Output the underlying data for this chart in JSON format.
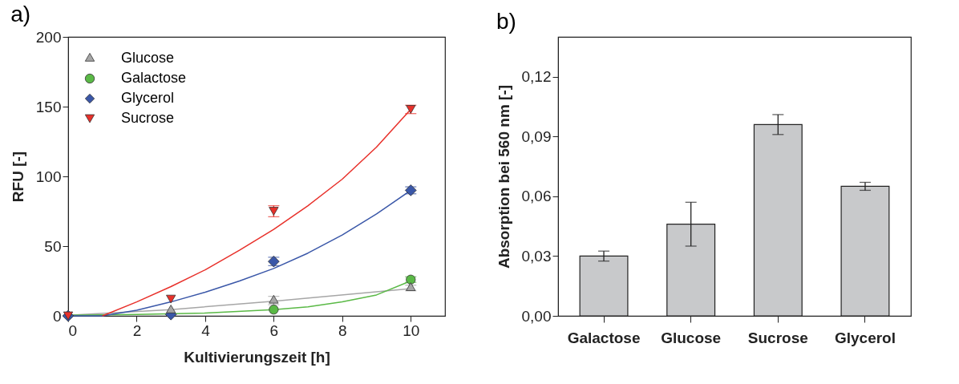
{
  "chart_data": [
    {
      "type": "scatter",
      "title": "a)",
      "xlabel": "Kultivierungszeit [h]",
      "ylabel": "RFU [-]",
      "x": [
        0,
        3,
        6,
        10
      ],
      "xlim": [
        0,
        11
      ],
      "xticks": [
        0,
        2,
        4,
        6,
        8,
        10
      ],
      "ylim": [
        0,
        200
      ],
      "yticks": [
        0,
        50,
        100,
        150,
        200
      ],
      "legend": "top left",
      "series": [
        {
          "name": "Glucose",
          "color": "#a6a6a6",
          "marker": "triangle",
          "values": [
            null,
            4,
            11,
            20
          ],
          "errors": [
            null,
            null,
            3,
            2
          ]
        },
        {
          "name": "Galactose",
          "color": "#5ab946",
          "marker": "circle",
          "values": [
            null,
            null,
            4.5,
            26
          ],
          "errors": [
            null,
            null,
            null,
            2
          ]
        },
        {
          "name": "Glycerol",
          "color": "#3a57a8",
          "marker": "diamond",
          "values": [
            0,
            1,
            39,
            90
          ],
          "errors": [
            null,
            null,
            3,
            2.5
          ]
        },
        {
          "name": "Sucrose",
          "color": "#e8302a",
          "marker": "triangle-down",
          "values": [
            0,
            12,
            75,
            148
          ],
          "errors": [
            null,
            null,
            4,
            3
          ]
        },
        {
          "type": "line",
          "color": "#a6a6a6",
          "x": [
            0,
            3,
            6,
            10
          ],
          "values": [
            0.5,
            4.5,
            10.5,
            19.5
          ]
        },
        {
          "type": "line",
          "color": "#5ab946",
          "x": [
            0,
            2,
            4,
            6,
            7,
            8,
            9,
            10
          ],
          "values": [
            0.5,
            1,
            2,
            4.5,
            6.5,
            10,
            15,
            25
          ]
        },
        {
          "type": "line",
          "color": "#3a57a8",
          "x": [
            0,
            1,
            2,
            3,
            4,
            5,
            6,
            7,
            8,
            9,
            10
          ],
          "values": [
            0,
            0,
            4,
            10,
            17,
            25,
            34,
            45,
            58,
            73,
            90
          ]
        },
        {
          "type": "line",
          "color": "#e8302a",
          "x": [
            1,
            2,
            3,
            4,
            5,
            6,
            7,
            8,
            9,
            10
          ],
          "values": [
            0,
            10,
            21,
            33,
            47,
            62,
            79,
            98,
            121,
            148
          ]
        }
      ]
    },
    {
      "type": "bar",
      "title": "b)",
      "ylabel": "Absorption bei 560 nm [-]",
      "categories": [
        "Galactose",
        "Glucose",
        "Sucrose",
        "Glycerol"
      ],
      "color": "#c8c9cb",
      "values": [
        0.03,
        0.046,
        0.096,
        0.065
      ],
      "errors": [
        0.0025,
        0.011,
        0.005,
        0.002
      ],
      "ylim": [
        0,
        0.14
      ],
      "yticks": [
        {
          "value": 0,
          "label": "0,00"
        },
        {
          "value": 0.03,
          "label": "0,03"
        },
        {
          "value": 0.06,
          "label": "0,06"
        },
        {
          "value": 0.09,
          "label": "0,09"
        },
        {
          "value": 0.12,
          "label": "0,12"
        }
      ]
    }
  ]
}
